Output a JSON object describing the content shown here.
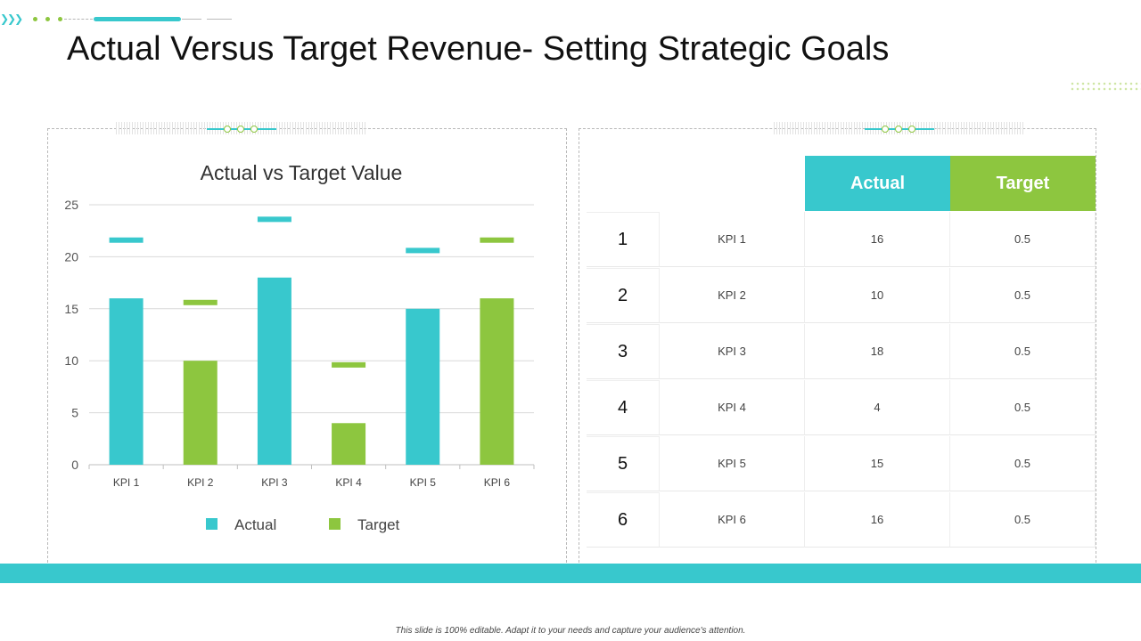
{
  "page": {
    "title": "Actual Versus Target Revenue- Setting Strategic Goals",
    "footer_note": "This slide is 100% editable. Adapt it to your needs and capture your audience's attention."
  },
  "colors": {
    "actual": "#38c8cd",
    "target": "#8dc63f"
  },
  "chart_data": {
    "type": "bar",
    "title": "Actual  vs Target Value",
    "categories": [
      "KPI 1",
      "KPI 2",
      "KPI 3",
      "KPI 4",
      "KPI 5",
      "KPI 6"
    ],
    "ylim": [
      0,
      25
    ],
    "yticks": [
      0,
      5,
      10,
      15,
      20,
      25
    ],
    "grid": true,
    "legend_position": "bottom",
    "legend": [
      "Actual",
      "Target"
    ],
    "bars": [
      {
        "category": "KPI 1",
        "value": 16,
        "series": "Actual"
      },
      {
        "category": "KPI 2",
        "value": 10,
        "series": "Target"
      },
      {
        "category": "KPI 3",
        "value": 18,
        "series": "Actual"
      },
      {
        "category": "KPI 4",
        "value": 4,
        "series": "Target"
      },
      {
        "category": "KPI 5",
        "value": 15,
        "series": "Actual"
      },
      {
        "category": "KPI 6",
        "value": 16,
        "series": "Target"
      }
    ],
    "target_markers": [
      {
        "category": "KPI 1",
        "value": 21.6,
        "series": "Actual"
      },
      {
        "category": "KPI 2",
        "value": 15.6,
        "series": "Target"
      },
      {
        "category": "KPI 3",
        "value": 23.6,
        "series": "Actual"
      },
      {
        "category": "KPI 4",
        "value": 9.6,
        "series": "Target"
      },
      {
        "category": "KPI 5",
        "value": 20.6,
        "series": "Actual"
      },
      {
        "category": "KPI 6",
        "value": 21.6,
        "series": "Target"
      }
    ]
  },
  "table": {
    "headers": {
      "actual": "Actual",
      "target": "Target"
    },
    "rows": [
      {
        "num": "1",
        "kpi": "KPI 1",
        "actual": "16",
        "target": "0.5"
      },
      {
        "num": "2",
        "kpi": "KPI 2",
        "actual": "10",
        "target": "0.5"
      },
      {
        "num": "3",
        "kpi": "KPI 3",
        "actual": "18",
        "target": "0.5"
      },
      {
        "num": "4",
        "kpi": "KPI 4",
        "actual": "4",
        "target": "0.5"
      },
      {
        "num": "5",
        "kpi": "KPI 5",
        "actual": "15",
        "target": "0.5"
      },
      {
        "num": "6",
        "kpi": "KPI 6",
        "actual": "16",
        "target": "0.5"
      }
    ]
  }
}
